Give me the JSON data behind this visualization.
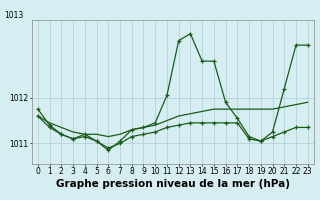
{
  "series": [
    {
      "x": [
        0,
        1,
        2,
        3,
        4,
        5,
        6,
        7,
        8,
        9,
        10,
        11,
        12,
        13,
        14,
        15,
        16,
        17,
        18,
        19,
        20,
        21,
        22,
        23
      ],
      "y": [
        1011.75,
        1011.4,
        1011.2,
        1011.1,
        1011.2,
        1011.05,
        1010.85,
        1011.05,
        1011.3,
        1011.35,
        1011.45,
        1012.05,
        1013.25,
        1013.4,
        1012.8,
        1012.8,
        1011.9,
        1011.55,
        1011.15,
        1011.05,
        1011.25,
        1012.2,
        1013.15,
        1013.15
      ],
      "marker": "+"
    },
    {
      "x": [
        0,
        1,
        2,
        3,
        4,
        5,
        6,
        7,
        8,
        9,
        10,
        11,
        12,
        13,
        14,
        15,
        16,
        17,
        18,
        19,
        20,
        21,
        22,
        23
      ],
      "y": [
        1011.6,
        1011.45,
        1011.35,
        1011.25,
        1011.2,
        1011.2,
        1011.15,
        1011.2,
        1011.3,
        1011.35,
        1011.4,
        1011.5,
        1011.6,
        1011.65,
        1011.7,
        1011.75,
        1011.75,
        1011.75,
        1011.75,
        1011.75,
        1011.75,
        1011.8,
        1011.85,
        1011.9
      ],
      "marker": null
    },
    {
      "x": [
        0,
        1,
        2,
        3,
        4,
        5,
        6,
        7,
        8,
        9,
        10,
        11,
        12,
        13,
        14,
        15,
        16,
        17,
        18,
        19,
        20,
        21,
        22,
        23
      ],
      "y": [
        1011.6,
        1011.35,
        1011.2,
        1011.1,
        1011.15,
        1011.05,
        1010.9,
        1011.0,
        1011.15,
        1011.2,
        1011.25,
        1011.35,
        1011.4,
        1011.45,
        1011.45,
        1011.45,
        1011.45,
        1011.45,
        1011.1,
        1011.05,
        1011.15,
        1011.25,
        1011.35,
        1011.35
      ],
      "marker": "+"
    }
  ],
  "line_color": "#1a5c1a",
  "bg_color": "#d6eef2",
  "grid_color": "#b0cdd4",
  "xlabel": "Graphe pression niveau de la mer (hPa)",
  "xlabel_fontsize": 7.5,
  "ylim": [
    1010.55,
    1013.7
  ],
  "ytop_label": "1013",
  "yticks": [
    1011,
    1012
  ],
  "xticks": [
    0,
    1,
    2,
    3,
    4,
    5,
    6,
    7,
    8,
    9,
    10,
    11,
    12,
    13,
    14,
    15,
    16,
    17,
    18,
    19,
    20,
    21,
    22,
    23
  ],
  "tick_fontsize": 5.5,
  "linewidth": 0.9,
  "figsize": [
    3.2,
    2.0
  ],
  "dpi": 100
}
